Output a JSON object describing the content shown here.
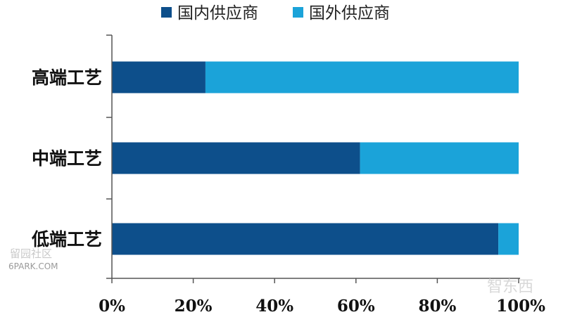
{
  "chart_data": {
    "type": "bar",
    "orientation": "horizontal",
    "stacked": true,
    "categories": [
      "高端工艺",
      "中端工艺",
      "低端工艺"
    ],
    "series": [
      {
        "name": "国内供应商",
        "values": [
          23,
          61,
          95
        ],
        "color": "#0d4f8b"
      },
      {
        "name": "国外供应商",
        "values": [
          77,
          39,
          5
        ],
        "color": "#1ba3d9"
      }
    ],
    "xlim": [
      0,
      100
    ],
    "xticks": [
      "0%",
      "20%",
      "40%",
      "60%",
      "80%",
      "100%"
    ],
    "legend_position": "top",
    "grid": false
  },
  "watermarks": {
    "forum_cn": "留园社区",
    "forum_url": "6PARK.COM",
    "logo": "智东西"
  }
}
